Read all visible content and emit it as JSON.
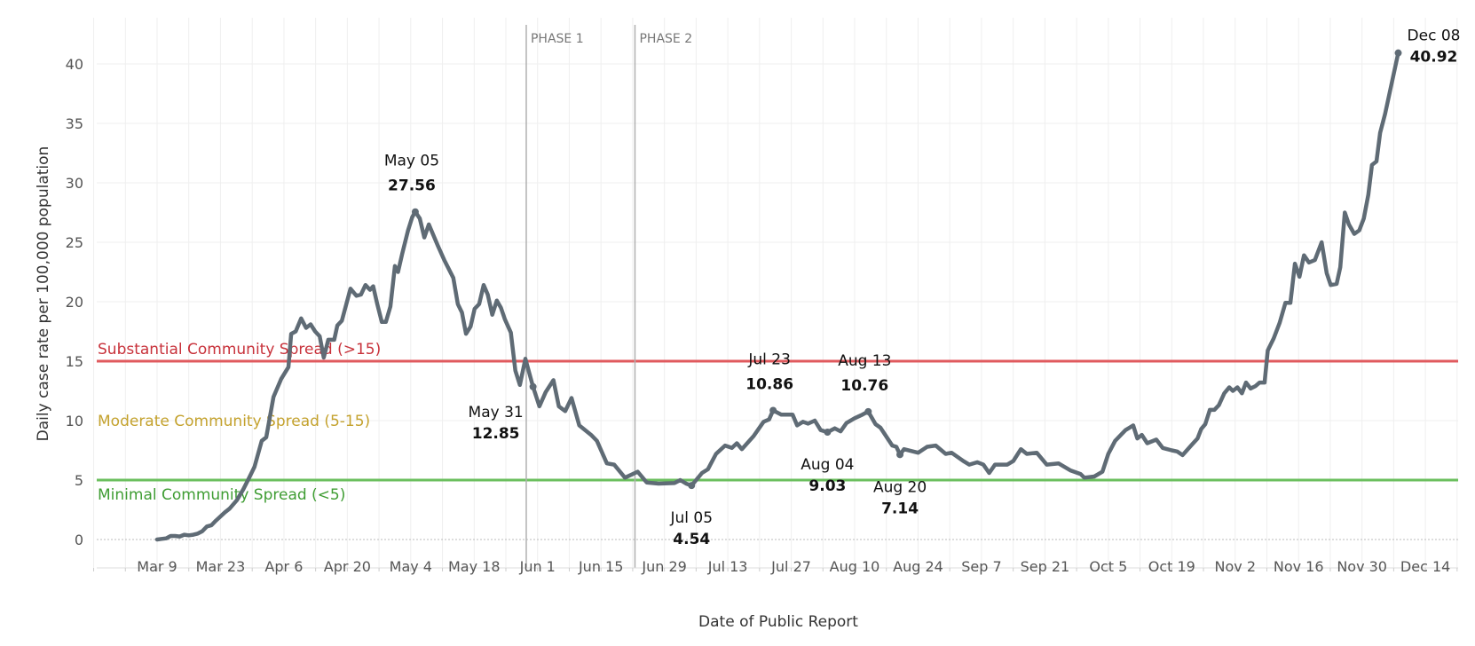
{
  "chart_data": {
    "type": "line",
    "title": "",
    "xlabel": "Date of Public Report",
    "ylabel": "Daily case rate per 100,000 population",
    "x_unit": "days since Mar 9",
    "xlim": [
      -14,
      288
    ],
    "ylim": [
      0,
      42
    ],
    "yticks": [
      0,
      5,
      10,
      15,
      20,
      25,
      30,
      35,
      40
    ],
    "xtick_labels": [
      "Mar 9",
      "Mar 23",
      "Apr 6",
      "Apr 20",
      "May 4",
      "May 18",
      "Jun 1",
      "Jun 15",
      "Jun 29",
      "Jul 13",
      "Jul 27",
      "Aug 10",
      "Aug 24",
      "Sep 7",
      "Sep 21",
      "Oct 5",
      "Oct 19",
      "Nov 2",
      "Nov 16",
      "Nov 30",
      "Dec 14"
    ],
    "xtick_step_days": 14,
    "grid": true,
    "colors": {
      "line": "#5f6b75",
      "substantial": "#e05a5e",
      "substantial_text": "#c8323b",
      "moderate_text": "#c4a22e",
      "minimal": "#6bbf5e",
      "minimal_text": "#3f9d33",
      "phase": "#b0b0b0"
    },
    "reference_lines": [
      {
        "value": 15,
        "label": "Substantial Community Spread (>15)",
        "kind": "substantial"
      },
      {
        "value": 5,
        "label": "Minimal Community Spread (<5)",
        "kind": "minimal"
      }
    ],
    "band_label": {
      "value": 10,
      "label": "Moderate Community Spread (5-15)"
    },
    "phases": [
      {
        "label": "PHASE 1",
        "day": 81.5
      },
      {
        "label": "PHASE 2",
        "day": 105.5
      }
    ],
    "annotations": [
      {
        "date": "May 05",
        "value": "27.56",
        "day": 57,
        "y": 27.56,
        "pos": "above"
      },
      {
        "date": "May 31",
        "value": "12.85",
        "day": 83,
        "y": 12.85,
        "pos": "below-left"
      },
      {
        "date": "Jul 05",
        "value": "4.54",
        "day": 118,
        "y": 4.54,
        "pos": "below"
      },
      {
        "date": "Jul 23",
        "value": "10.86",
        "day": 136,
        "y": 10.86,
        "pos": "above"
      },
      {
        "date": "Aug 04",
        "value": "9.03",
        "day": 148,
        "y": 9.03,
        "pos": "below"
      },
      {
        "date": "Aug 13",
        "value": "10.76",
        "day": 157,
        "y": 10.76,
        "pos": "above"
      },
      {
        "date": "Aug 20",
        "value": "7.14",
        "day": 164,
        "y": 7.14,
        "pos": "below"
      },
      {
        "date": "Dec 08",
        "value": "40.92",
        "day": 274,
        "y": 40.92,
        "pos": "right"
      }
    ],
    "series": [
      {
        "name": "Daily case rate",
        "points": [
          [
            0,
            0
          ],
          [
            1,
            0.05
          ],
          [
            2,
            0.1
          ],
          [
            3,
            0.3
          ],
          [
            4,
            0.3
          ],
          [
            5,
            0.25
          ],
          [
            6,
            0.4
          ],
          [
            7,
            0.35
          ],
          [
            8,
            0.4
          ],
          [
            9,
            0.5
          ],
          [
            10,
            0.7
          ],
          [
            11,
            1.1
          ],
          [
            12,
            1.2
          ],
          [
            13,
            1.6
          ],
          [
            15,
            2.3
          ],
          [
            16,
            2.6
          ],
          [
            17.6,
            3.3
          ],
          [
            19,
            4.2
          ],
          [
            20.2,
            5.1
          ],
          [
            21.5,
            6.1
          ],
          [
            23.1,
            8.3
          ],
          [
            24.1,
            8.6
          ],
          [
            25.7,
            12.0
          ],
          [
            27.4,
            13.5
          ],
          [
            29,
            14.5
          ],
          [
            29.6,
            17.3
          ],
          [
            30.6,
            17.5
          ],
          [
            31.8,
            18.6
          ],
          [
            32.9,
            17.8
          ],
          [
            33.9,
            18.1
          ],
          [
            34.9,
            17.5
          ],
          [
            35.9,
            17.1
          ],
          [
            36.8,
            15.3
          ],
          [
            37.8,
            16.8
          ],
          [
            39.1,
            16.8
          ],
          [
            39.8,
            18.0
          ],
          [
            40.8,
            18.4
          ],
          [
            42.7,
            21.1
          ],
          [
            44,
            20.5
          ],
          [
            45,
            20.6
          ],
          [
            46,
            21.4
          ],
          [
            47,
            21.0
          ],
          [
            47.7,
            21.3
          ],
          [
            48.6,
            19.8
          ],
          [
            49.6,
            18.3
          ],
          [
            50.5,
            18.3
          ],
          [
            51.5,
            19.6
          ],
          [
            52.5,
            23.0
          ],
          [
            53.2,
            22.5
          ],
          [
            54.1,
            24.0
          ],
          [
            55.4,
            26.0
          ],
          [
            56.3,
            27.1
          ],
          [
            57,
            27.56
          ],
          [
            58,
            27.0
          ],
          [
            59,
            25.4
          ],
          [
            60,
            26.5
          ],
          [
            62,
            24.7
          ],
          [
            63.4,
            23.5
          ],
          [
            65.4,
            22.0
          ],
          [
            66.4,
            19.8
          ],
          [
            67.3,
            19.1
          ],
          [
            68.2,
            17.3
          ],
          [
            69.2,
            17.9
          ],
          [
            70.1,
            19.4
          ],
          [
            71.1,
            19.8
          ],
          [
            72.1,
            21.4
          ],
          [
            73,
            20.6
          ],
          [
            74,
            18.9
          ],
          [
            75,
            20.1
          ],
          [
            75.9,
            19.5
          ],
          [
            76.8,
            18.5
          ],
          [
            78.1,
            17.4
          ],
          [
            79.1,
            14.2
          ],
          [
            80.1,
            13.0
          ],
          [
            81.3,
            15.2
          ],
          [
            83,
            12.85
          ],
          [
            84.4,
            11.2
          ],
          [
            85.8,
            12.4
          ],
          [
            87.5,
            13.4
          ],
          [
            88.7,
            11.2
          ],
          [
            90.1,
            10.8
          ],
          [
            91.5,
            11.9
          ],
          [
            93.2,
            9.6
          ],
          [
            95.8,
            8.8
          ],
          [
            97.1,
            8.3
          ],
          [
            99.3,
            6.4
          ],
          [
            100.9,
            6.3
          ],
          [
            103.3,
            5.2
          ],
          [
            106.1,
            5.7
          ],
          [
            108.1,
            4.8
          ],
          [
            110.7,
            4.7
          ],
          [
            114.2,
            4.75
          ],
          [
            115.5,
            5.0
          ],
          [
            116.8,
            4.7
          ],
          [
            118,
            4.54
          ],
          [
            120.3,
            5.6
          ],
          [
            121.6,
            5.9
          ],
          [
            123.4,
            7.2
          ],
          [
            125.4,
            7.9
          ],
          [
            126.9,
            7.7
          ],
          [
            128,
            8.1
          ],
          [
            129.1,
            7.6
          ],
          [
            131.7,
            8.7
          ],
          [
            133.9,
            9.9
          ],
          [
            135.1,
            10.1
          ],
          [
            136,
            10.86
          ],
          [
            137.8,
            10.5
          ],
          [
            140.3,
            10.5
          ],
          [
            141.3,
            9.6
          ],
          [
            142.6,
            9.9
          ],
          [
            143.7,
            9.75
          ],
          [
            145.2,
            10.0
          ],
          [
            146.5,
            9.2
          ],
          [
            148,
            9.03
          ],
          [
            149.6,
            9.35
          ],
          [
            150.9,
            9.1
          ],
          [
            152.2,
            9.8
          ],
          [
            154,
            10.2
          ],
          [
            155.7,
            10.5
          ],
          [
            157,
            10.76
          ],
          [
            158.6,
            9.7
          ],
          [
            159.7,
            9.4
          ],
          [
            162.3,
            7.9
          ],
          [
            163.2,
            7.8
          ],
          [
            164,
            7.14
          ],
          [
            164.9,
            7.6
          ],
          [
            168,
            7.3
          ],
          [
            170,
            7.8
          ],
          [
            171.9,
            7.9
          ],
          [
            174.1,
            7.2
          ],
          [
            175.4,
            7.3
          ],
          [
            178,
            6.6
          ],
          [
            179.3,
            6.3
          ],
          [
            181.1,
            6.5
          ],
          [
            182.4,
            6.3
          ],
          [
            183.7,
            5.6
          ],
          [
            185,
            6.3
          ],
          [
            187.7,
            6.3
          ],
          [
            189,
            6.6
          ],
          [
            190.7,
            7.6
          ],
          [
            192,
            7.2
          ],
          [
            194.2,
            7.3
          ],
          [
            196.4,
            6.3
          ],
          [
            199,
            6.4
          ],
          [
            201.7,
            5.8
          ],
          [
            203.9,
            5.5
          ],
          [
            204.7,
            5.2
          ],
          [
            206.9,
            5.3
          ],
          [
            208.7,
            5.7
          ],
          [
            210,
            7.2
          ],
          [
            211.5,
            8.3
          ],
          [
            213.8,
            9.2
          ],
          [
            215.5,
            9.6
          ],
          [
            216.4,
            8.5
          ],
          [
            217.4,
            8.8
          ],
          [
            218.6,
            8.1
          ],
          [
            220.6,
            8.4
          ],
          [
            222,
            7.7
          ],
          [
            224,
            7.5
          ],
          [
            225.2,
            7.4
          ],
          [
            226.4,
            7.1
          ],
          [
            228.5,
            8.0
          ],
          [
            229.7,
            8.5
          ],
          [
            230.5,
            9.3
          ],
          [
            231.4,
            9.7
          ],
          [
            232.4,
            10.9
          ],
          [
            233.4,
            10.9
          ],
          [
            234.4,
            11.3
          ],
          [
            235.6,
            12.3
          ],
          [
            236.7,
            12.8
          ],
          [
            237.5,
            12.5
          ],
          [
            238.5,
            12.8
          ],
          [
            239.5,
            12.3
          ],
          [
            240.4,
            13.2
          ],
          [
            241.4,
            12.7
          ],
          [
            242.5,
            12.9
          ],
          [
            243.4,
            13.2
          ],
          [
            244.5,
            13.2
          ],
          [
            245.2,
            15.9
          ],
          [
            246.5,
            16.9
          ],
          [
            247.8,
            18.2
          ],
          [
            249.1,
            19.9
          ],
          [
            250.2,
            19.9
          ],
          [
            251.2,
            23.2
          ],
          [
            252.2,
            22.1
          ],
          [
            253.2,
            23.9
          ],
          [
            254.3,
            23.3
          ],
          [
            255.6,
            23.5
          ],
          [
            257.1,
            25.0
          ],
          [
            258.2,
            22.4
          ],
          [
            259.1,
            21.4
          ],
          [
            260.4,
            21.5
          ],
          [
            261.2,
            22.9
          ],
          [
            262.2,
            27.5
          ],
          [
            263.1,
            26.5
          ],
          [
            264.3,
            25.7
          ],
          [
            265.4,
            26.0
          ],
          [
            266.4,
            27.0
          ],
          [
            267.4,
            29.0
          ],
          [
            268.2,
            31.5
          ],
          [
            269.2,
            31.8
          ],
          [
            270,
            34.2
          ],
          [
            271.1,
            35.8
          ],
          [
            274,
            40.92
          ]
        ]
      }
    ]
  }
}
